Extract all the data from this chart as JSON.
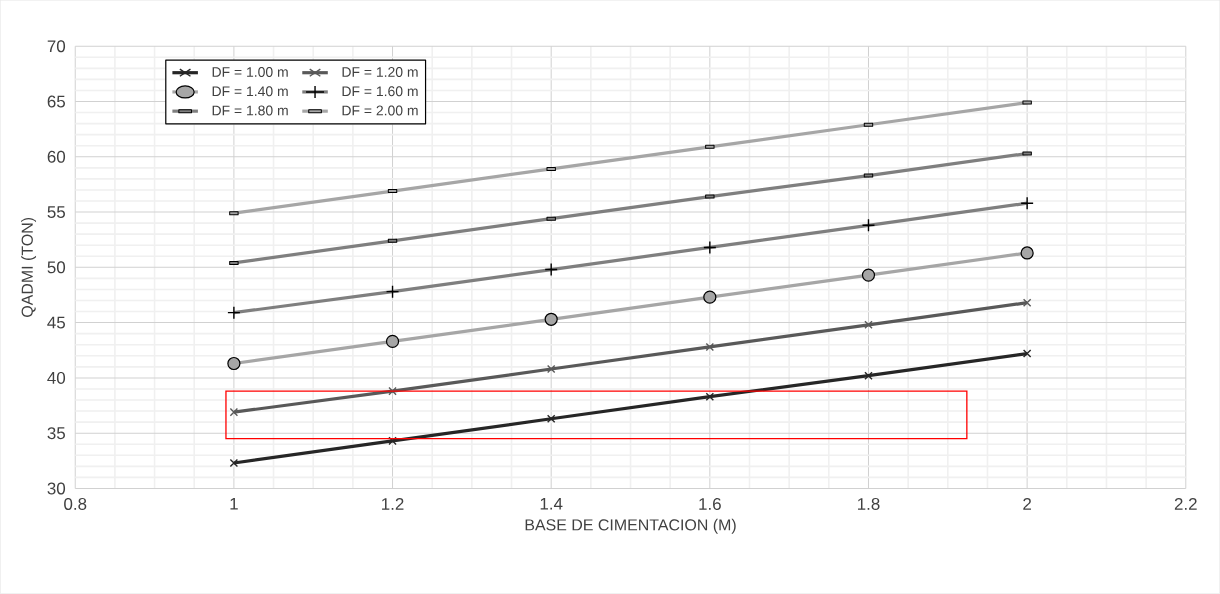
{
  "chart_data": {
    "type": "line",
    "xlabel": "BASE DE CIMENTACION (M)",
    "ylabel": "QADMI (TON)",
    "x": [
      1,
      1.2,
      1.4,
      1.6,
      1.8,
      2
    ],
    "series": [
      {
        "name": "DF = 1.00 m",
        "color": "#262626",
        "marker": "cross",
        "values": [
          32.3,
          34.3,
          36.3,
          38.3,
          40.2,
          42.2
        ]
      },
      {
        "name": "DF = 1.20 m",
        "color": "#595959",
        "marker": "cross",
        "values": [
          36.9,
          38.8,
          40.8,
          42.8,
          44.8,
          46.8
        ]
      },
      {
        "name": "DF = 1.40 m",
        "color": "#a6a6a6",
        "marker": "circle",
        "values": [
          41.3,
          43.3,
          45.3,
          47.3,
          49.3,
          51.3
        ]
      },
      {
        "name": "DF = 1.60 m",
        "color": "#7f7f7f",
        "marker": "plus",
        "values": [
          45.9,
          47.8,
          49.8,
          51.8,
          53.8,
          55.8
        ]
      },
      {
        "name": "DF = 1.80 m",
        "color": "#7f7f7f",
        "marker": "square",
        "values": [
          50.4,
          52.4,
          54.4,
          56.4,
          58.3,
          60.3
        ]
      },
      {
        "name": "DF = 2.00 m",
        "color": "#a6a6a6",
        "marker": "square",
        "values": [
          54.9,
          56.9,
          58.9,
          60.9,
          62.9,
          64.9
        ]
      }
    ],
    "xlim": [
      0.8,
      2.2
    ],
    "xticks": [
      0.8,
      1,
      1.2,
      1.4,
      1.6,
      1.8,
      2,
      2.2
    ],
    "ylim": [
      30,
      70
    ],
    "yticks": [
      30,
      35,
      40,
      45,
      50,
      55,
      60,
      65,
      70
    ],
    "grid": true,
    "legend": "top left"
  }
}
